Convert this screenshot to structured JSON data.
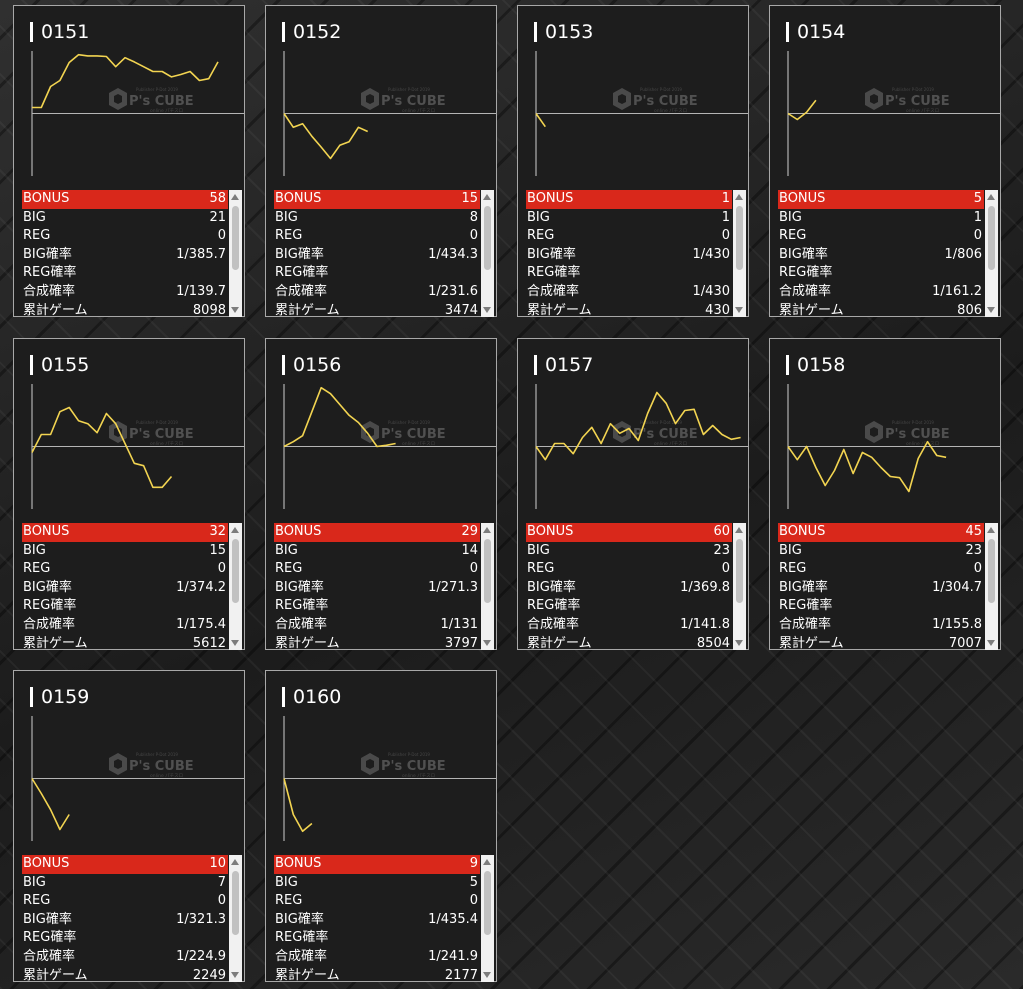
{
  "labels": {
    "bonus": "BONUS",
    "big": "BIG",
    "reg": "REG",
    "big_rate": "BIG確率",
    "reg_rate": "REG確率",
    "combined_rate": "合成確率",
    "total_games": "累計ゲーム"
  },
  "colors": {
    "bonus_row": "#d9281b",
    "graph_line": "#f2d451",
    "panel_bg": "#1d1d1d"
  },
  "watermark": {
    "brand": "P's CUBE",
    "small_top": "Publisher P-Dot 2019",
    "small_bottom": "online パチスロ"
  },
  "icons": {
    "logo": "cube-logo-icon",
    "scroll_up": "scroll-up-arrow-icon",
    "scroll_down": "scroll-down-arrow-icon"
  },
  "machines": [
    {
      "id": "0151",
      "bonus": "58",
      "big": "21",
      "reg": "0",
      "big_rate": "1/385.7",
      "reg_rate": "",
      "combined_rate": "1/139.7",
      "total_games": "8098",
      "graph": [
        0.1,
        0.1,
        0.45,
        0.55,
        0.85,
        0.98,
        0.96,
        0.96,
        0.95,
        0.78,
        0.93,
        0.86,
        0.78,
        0.7,
        0.7,
        0.61,
        0.65,
        0.7,
        0.55,
        0.58,
        0.86
      ]
    },
    {
      "id": "0152",
      "bonus": "15",
      "big": "8",
      "reg": "0",
      "big_rate": "1/434.3",
      "reg_rate": "",
      "combined_rate": "1/231.6",
      "total_games": "3474",
      "graph": [
        0.0,
        -0.23,
        -0.17,
        -0.38,
        -0.56,
        -0.75,
        -0.53,
        -0.47,
        -0.23,
        -0.3
      ]
    },
    {
      "id": "0153",
      "bonus": "1",
      "big": "1",
      "reg": "0",
      "big_rate": "1/430",
      "reg_rate": "",
      "combined_rate": "1/430",
      "total_games": "430",
      "graph": [
        0.0,
        -0.22
      ]
    },
    {
      "id": "0154",
      "bonus": "5",
      "big": "1",
      "reg": "0",
      "big_rate": "1/806",
      "reg_rate": "",
      "combined_rate": "1/161.2",
      "total_games": "806",
      "graph": [
        0.0,
        -0.1,
        0.02,
        0.22
      ]
    },
    {
      "id": "0155",
      "bonus": "32",
      "big": "15",
      "reg": "0",
      "big_rate": "1/374.2",
      "reg_rate": "",
      "combined_rate": "1/175.4",
      "total_games": "5612",
      "graph": [
        -0.1,
        0.2,
        0.2,
        0.58,
        0.65,
        0.43,
        0.38,
        0.23,
        0.55,
        0.38,
        0.05,
        -0.28,
        -0.32,
        -0.68,
        -0.68,
        -0.5
      ]
    },
    {
      "id": "0156",
      "bonus": "29",
      "big": "14",
      "reg": "0",
      "big_rate": "1/271.3",
      "reg_rate": "",
      "combined_rate": "1/131",
      "total_games": "3797",
      "graph": [
        0.0,
        0.08,
        0.18,
        0.58,
        0.98,
        0.88,
        0.7,
        0.52,
        0.4,
        0.22,
        0.0,
        0.02,
        0.05
      ]
    },
    {
      "id": "0157",
      "bonus": "60",
      "big": "23",
      "reg": "0",
      "big_rate": "1/369.8",
      "reg_rate": "",
      "combined_rate": "1/141.8",
      "total_games": "8504",
      "graph": [
        0.0,
        -0.22,
        0.05,
        0.05,
        -0.12,
        0.15,
        0.32,
        0.05,
        0.38,
        0.22,
        0.3,
        0.1,
        0.55,
        0.9,
        0.72,
        0.38,
        0.6,
        0.62,
        0.2,
        0.35,
        0.2,
        0.12,
        0.15
      ]
    },
    {
      "id": "0158",
      "bonus": "45",
      "big": "23",
      "reg": "0",
      "big_rate": "1/304.7",
      "reg_rate": "",
      "combined_rate": "1/155.8",
      "total_games": "7007",
      "graph": [
        0.0,
        -0.22,
        0.0,
        -0.35,
        -0.65,
        -0.4,
        -0.05,
        -0.45,
        -0.1,
        -0.18,
        -0.35,
        -0.5,
        -0.52,
        -0.75,
        -0.2,
        0.08,
        -0.15,
        -0.18
      ]
    },
    {
      "id": "0159",
      "bonus": "10",
      "big": "7",
      "reg": "0",
      "big_rate": "1/321.3",
      "reg_rate": "",
      "combined_rate": "1/224.9",
      "total_games": "2249",
      "graph": [
        0.0,
        -0.25,
        -0.52,
        -0.85,
        -0.6
      ]
    },
    {
      "id": "0160",
      "bonus": "9",
      "big": "5",
      "reg": "0",
      "big_rate": "1/435.4",
      "reg_rate": "",
      "combined_rate": "1/241.9",
      "total_games": "2177",
      "graph": [
        0.0,
        -0.6,
        -0.88,
        -0.75
      ]
    }
  ]
}
